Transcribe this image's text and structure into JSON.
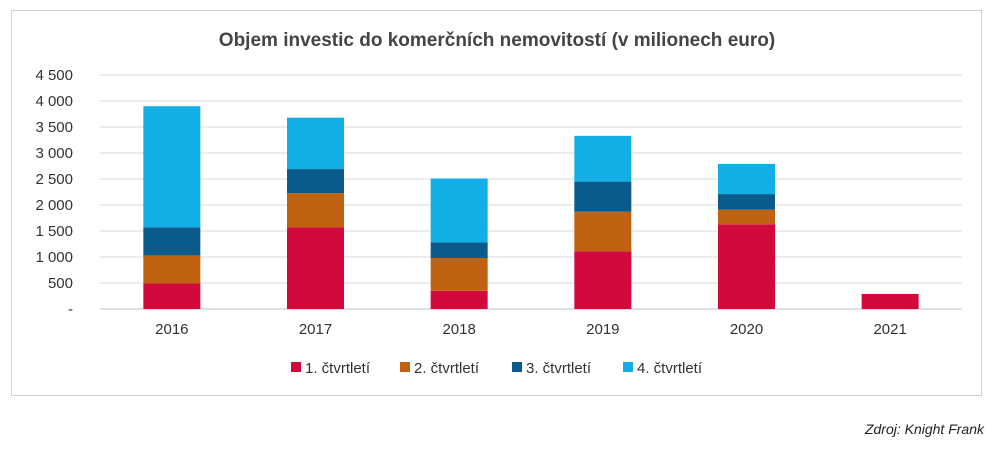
{
  "chart_data": {
    "type": "bar",
    "stacked": true,
    "title": "Objem investic do komerčních nemovitostí (v milionech euro)",
    "categories": [
      "2016",
      "2017",
      "2018",
      "2019",
      "2020",
      "2021"
    ],
    "series": [
      {
        "name": "1. čtvrtletí",
        "color": "#d20a3c",
        "values": [
          490,
          1570,
          350,
          1110,
          1630,
          290
        ]
      },
      {
        "name": "2. čtvrtletí",
        "color": "#c0620f",
        "values": [
          540,
          660,
          630,
          760,
          280,
          0
        ]
      },
      {
        "name": "3. čtvrtletí",
        "color": "#0b5a8c",
        "values": [
          540,
          460,
          300,
          580,
          300,
          0
        ]
      },
      {
        "name": "4. čtvrtletí",
        "color": "#14aee6",
        "values": [
          2330,
          990,
          1230,
          880,
          580,
          0
        ]
      }
    ],
    "yticks": [
      "-",
      "500",
      "1 000",
      "1 500",
      "2 000",
      "2 500",
      "3 000",
      "3 500",
      "4 000",
      "4 500"
    ],
    "ylim": [
      0,
      4500
    ],
    "grid": true,
    "legend": "bottom"
  },
  "source": "Zdroj: Knight Frank"
}
